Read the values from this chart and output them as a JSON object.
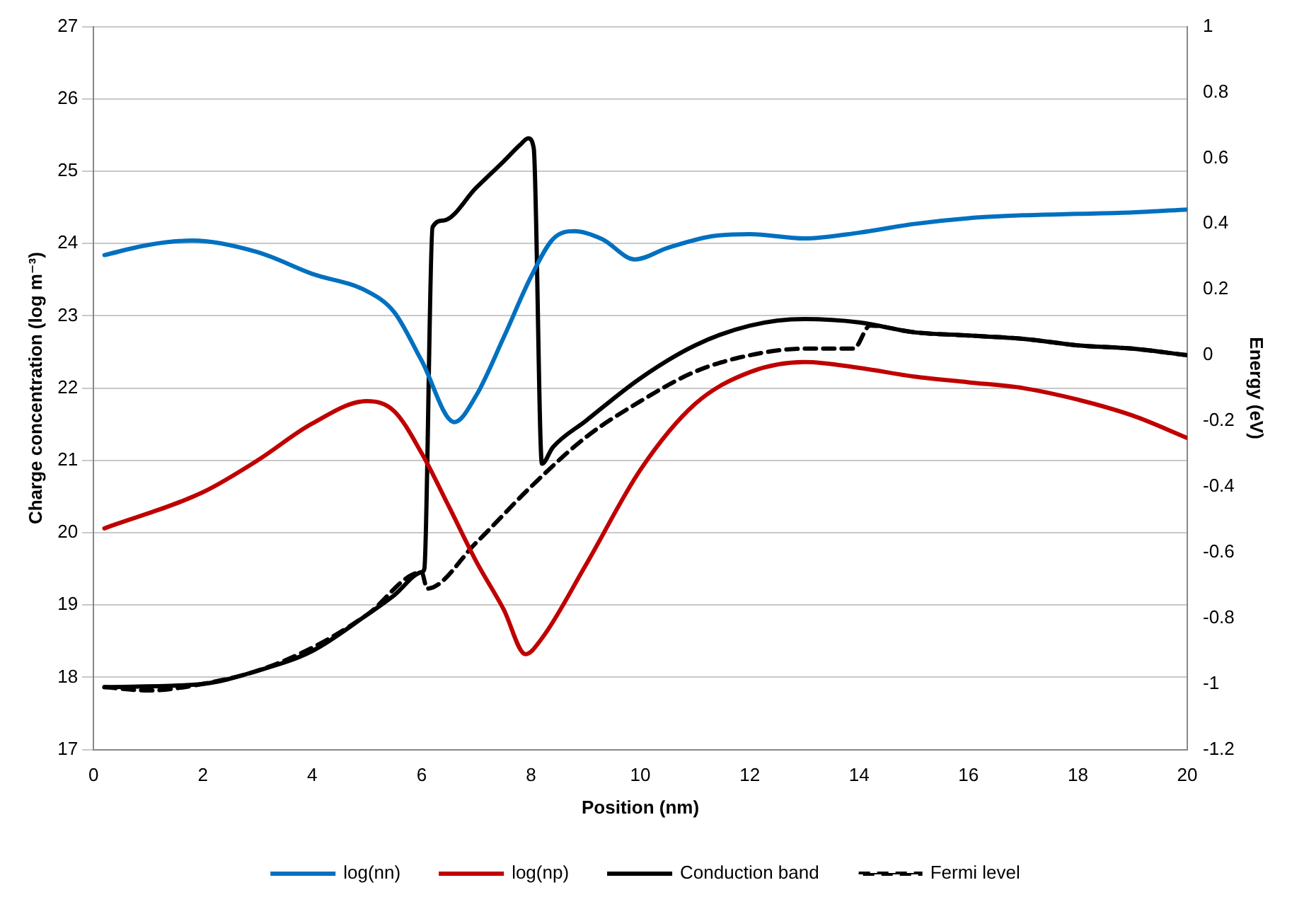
{
  "chart_data": {
    "type": "line",
    "xlabel": "Position (nm)",
    "ylabel": "Charge concentration (log m⁻³)",
    "y2label": "Energy (eV)",
    "xlim": [
      0,
      20
    ],
    "xticks": [
      0,
      2,
      4,
      6,
      8,
      10,
      12,
      14,
      16,
      18,
      20
    ],
    "ylim": [
      17,
      27
    ],
    "yticks": [
      17,
      18,
      19,
      20,
      21,
      22,
      23,
      24,
      25,
      26,
      27
    ],
    "y2lim": [
      -1.2,
      1
    ],
    "y2ticks": [
      -1.2,
      -1,
      -0.8,
      -0.6,
      -0.4,
      -0.2,
      0,
      0.2,
      0.4,
      0.6,
      0.8,
      1
    ],
    "grid": "y",
    "legend": "bottom",
    "marker": "none",
    "series": [
      {
        "name": "log(nn)",
        "color": "#0070c0",
        "line_style": "solid",
        "x": [
          0.2,
          1,
          1.8,
          3,
          4,
          5,
          5.5,
          6,
          6.6,
          7,
          7.5,
          8,
          8.4,
          8.8,
          9.3,
          9.9,
          10.5,
          11.3,
          12,
          13,
          14,
          15,
          16,
          17,
          18,
          19,
          20
        ],
        "values": [
          23.84,
          23.98,
          24.04,
          23.88,
          23.58,
          23.34,
          23.05,
          22.38,
          21.53,
          21.9,
          22.7,
          23.54,
          24.06,
          24.17,
          24.06,
          23.78,
          23.94,
          24.1,
          24.13,
          24.07,
          24.15,
          24.27,
          24.35,
          24.39,
          24.41,
          24.43,
          24.47
        ]
      },
      {
        "name": "log(np)",
        "color": "#c00000",
        "line_style": "solid",
        "x": [
          0.2,
          2,
          3,
          4,
          5,
          5.5,
          6,
          6.5,
          7,
          7.5,
          7.9,
          8.2,
          9,
          10,
          11,
          12,
          13,
          14,
          15,
          16,
          17,
          18,
          19,
          20
        ],
        "values": [
          20.06,
          20.56,
          21.0,
          21.51,
          21.82,
          21.68,
          21.1,
          20.36,
          19.6,
          18.94,
          18.32,
          18.54,
          19.55,
          20.87,
          21.78,
          22.22,
          22.36,
          22.28,
          22.16,
          22.08,
          22.0,
          21.84,
          21.62,
          21.31
        ]
      },
      {
        "name": "Conduction band",
        "color": "#000000",
        "line_style": "solid",
        "axis": "y2",
        "x": [
          0.2,
          2,
          3,
          4,
          5,
          5.5,
          6,
          6.05,
          6.2,
          6.4,
          7,
          7.5,
          7.8,
          7.95,
          8.05,
          8.2,
          8.4,
          9,
          10,
          11,
          12,
          13,
          14,
          15,
          16,
          17,
          18,
          19,
          20
        ],
        "values": [
          -1.01,
          -1.0,
          -0.96,
          -0.9,
          -0.79,
          -0.73,
          -0.66,
          -0.65,
          0.39,
          0.41,
          0.51,
          0.59,
          0.64,
          0.66,
          0.63,
          -0.33,
          -0.28,
          -0.2,
          -0.07,
          0.03,
          0.09,
          0.11,
          0.1,
          0.07,
          0.06,
          0.05,
          0.03,
          0.02,
          0.0
        ]
      },
      {
        "name": "Fermi level",
        "color": "#000000",
        "line_style": "dashed",
        "axis": "y2",
        "x": [
          0.2,
          1,
          2,
          3,
          4,
          5,
          6,
          6.1,
          7,
          8,
          9,
          10,
          11,
          12,
          13,
          13.9,
          14.2,
          15,
          16,
          17,
          18,
          19,
          20
        ],
        "values": [
          -1.01,
          -1.02,
          -1.0,
          -0.96,
          -0.89,
          -0.79,
          -0.66,
          -0.71,
          -0.57,
          -0.4,
          -0.25,
          -0.14,
          -0.05,
          0.0,
          0.02,
          0.02,
          0.09,
          0.07,
          0.06,
          0.05,
          0.03,
          0.02,
          0.0
        ]
      }
    ]
  }
}
